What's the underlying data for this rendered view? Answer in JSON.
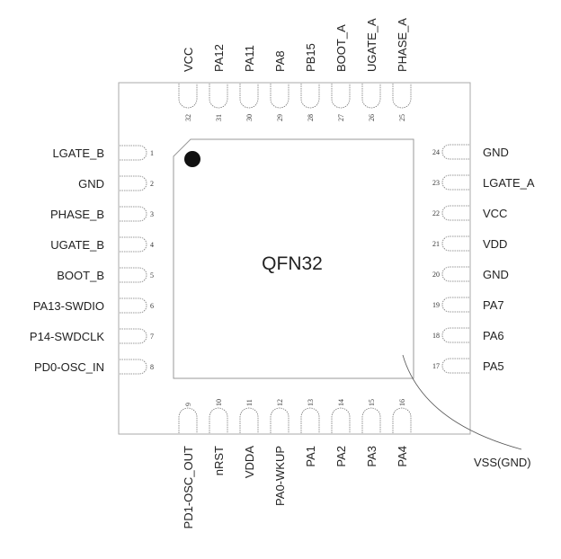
{
  "package": {
    "name": "QFN32",
    "thermal_pad_label": "VSS(GND)"
  },
  "pins": {
    "left": [
      {
        "num": "1",
        "label": "LGATE_B"
      },
      {
        "num": "2",
        "label": "GND"
      },
      {
        "num": "3",
        "label": "PHASE_B"
      },
      {
        "num": "4",
        "label": "UGATE_B"
      },
      {
        "num": "5",
        "label": "BOOT_B"
      },
      {
        "num": "6",
        "label": "PA13-SWDIO"
      },
      {
        "num": "7",
        "label": "P14-SWDCLK"
      },
      {
        "num": "8",
        "label": "PD0-OSC_IN"
      }
    ],
    "bottom": [
      {
        "num": "9",
        "label": "PD1-OSC_OUT"
      },
      {
        "num": "10",
        "label": "nRST"
      },
      {
        "num": "11",
        "label": "VDDA"
      },
      {
        "num": "12",
        "label": "PA0-WKUP"
      },
      {
        "num": "13",
        "label": "PA1"
      },
      {
        "num": "14",
        "label": "PA2"
      },
      {
        "num": "15",
        "label": "PA3"
      },
      {
        "num": "16",
        "label": "PA4"
      }
    ],
    "right": [
      {
        "num": "17",
        "label": "PA5"
      },
      {
        "num": "18",
        "label": "PA6"
      },
      {
        "num": "19",
        "label": "PA7"
      },
      {
        "num": "20",
        "label": "GND"
      },
      {
        "num": "21",
        "label": "VDD"
      },
      {
        "num": "22",
        "label": "VCC"
      },
      {
        "num": "23",
        "label": "LGATE_A"
      },
      {
        "num": "24",
        "label": "GND"
      }
    ],
    "top": [
      {
        "num": "25",
        "label": "PHASE_A"
      },
      {
        "num": "26",
        "label": "UGATE_A"
      },
      {
        "num": "27",
        "label": "BOOT_A"
      },
      {
        "num": "28",
        "label": "PB15"
      },
      {
        "num": "29",
        "label": "PA8"
      },
      {
        "num": "30",
        "label": "PA11"
      },
      {
        "num": "31",
        "label": "PA12"
      },
      {
        "num": "32",
        "label": "VCC"
      }
    ]
  }
}
